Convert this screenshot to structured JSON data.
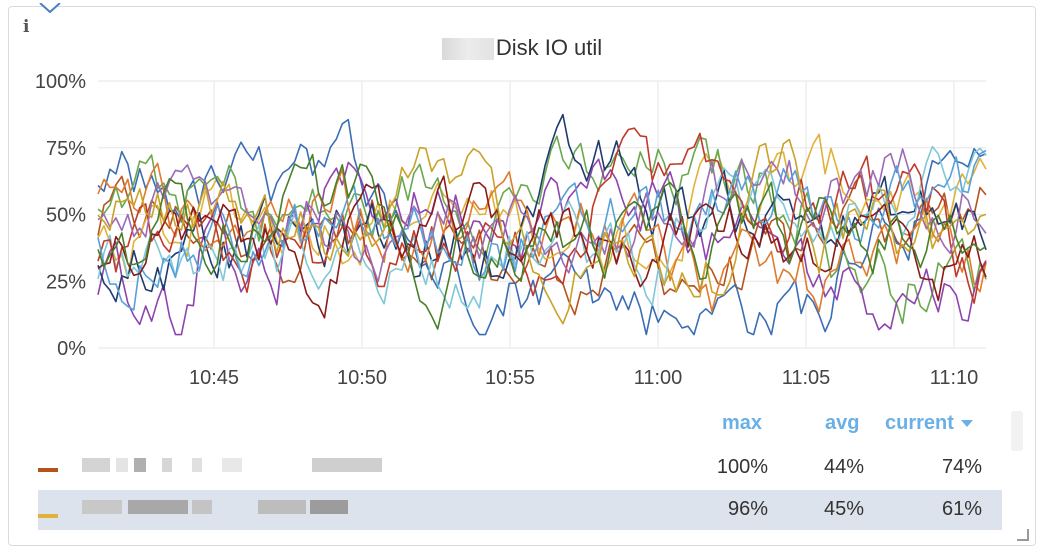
{
  "panel": {
    "title": "Disk IO util",
    "info_icon": "info-icon"
  },
  "chart_data": {
    "type": "line",
    "title": "Disk IO util",
    "y_ticks": [
      "100%",
      "75%",
      "50%",
      "25%",
      "0%"
    ],
    "x_ticks": [
      "10:45",
      "10:50",
      "10:55",
      "11:00",
      "11:05",
      "11:10"
    ],
    "ylim": [
      0,
      100
    ],
    "x_range": [
      "10:41",
      "11:11"
    ],
    "grid": true,
    "series_colors": [
      "#b5531f",
      "#e0b23a",
      "#3a6db5",
      "#6aa84f",
      "#8e44ad",
      "#1f3b6e",
      "#e07a2e",
      "#7ec8d8",
      "#c0392b",
      "#9b6bb5",
      "#5aa0d8",
      "#8b1a1a",
      "#c9a227",
      "#4a7f2a"
    ]
  },
  "legend": {
    "headers": {
      "max": "max",
      "avg": "avg",
      "current": "current",
      "sort_icon": "caret-down-icon"
    },
    "rows": [
      {
        "color": "#b5531f",
        "max": "100%",
        "avg": "44%",
        "current": "74%"
      },
      {
        "color": "#e0b23a",
        "max": "96%",
        "avg": "45%",
        "current": "61%"
      }
    ]
  }
}
